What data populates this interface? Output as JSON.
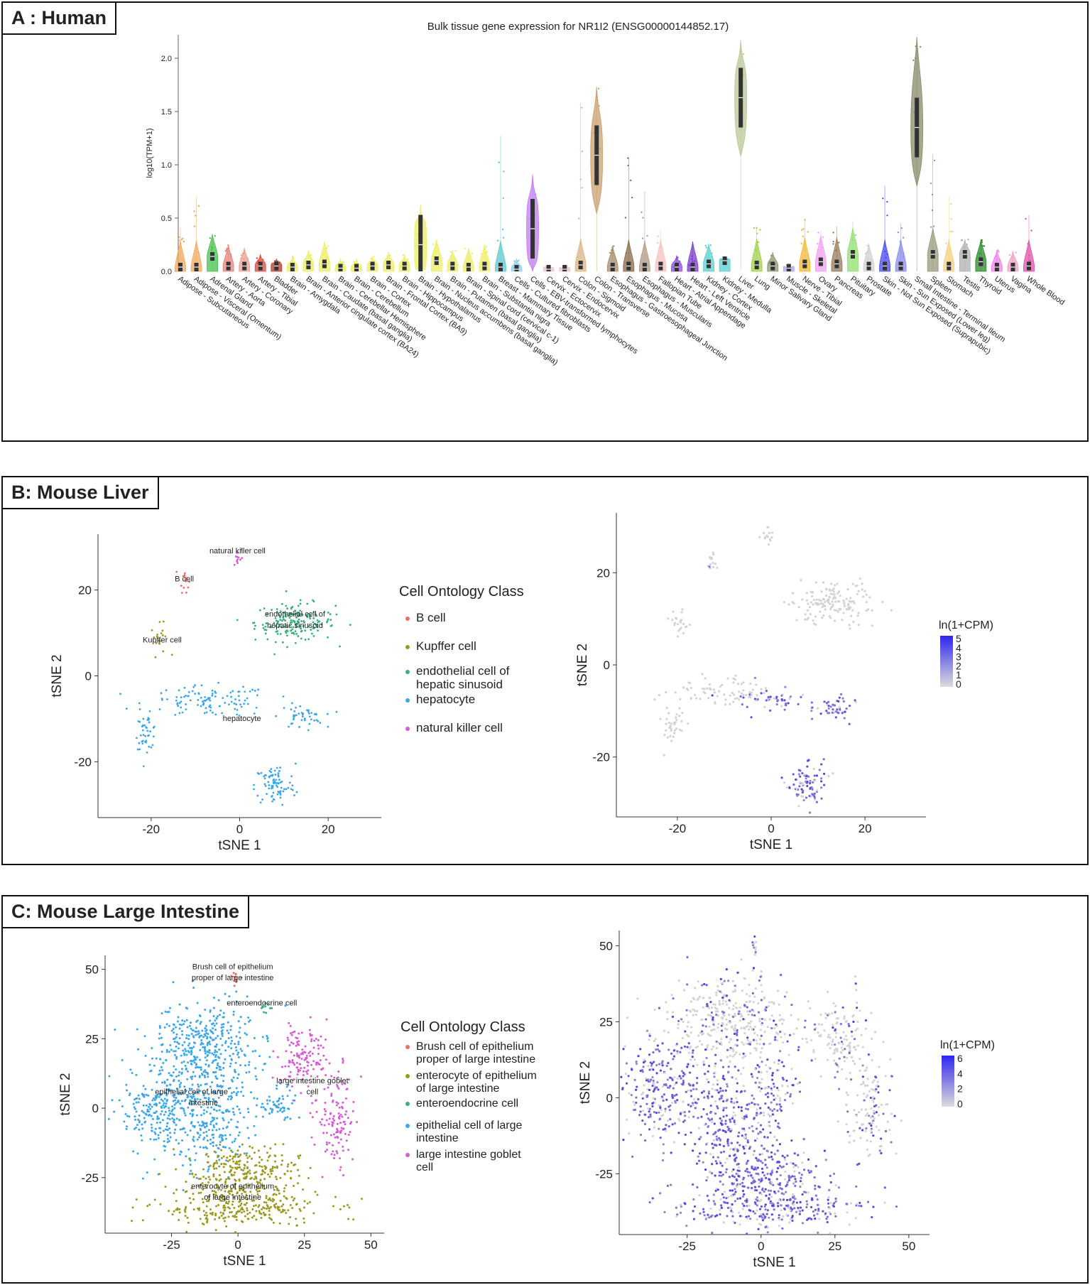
{
  "panels": {
    "A": {
      "label": "A  : Human"
    },
    "B": {
      "label": "B: Mouse Liver"
    },
    "C": {
      "label": "C: Mouse Large Intestine"
    }
  },
  "colors": {
    "grey": "#d3d3d3",
    "purple": "#4b33e0",
    "B cell": "#e8715f",
    "Kupffer cell": "#9c9a1e",
    "endothelial": "#33b27a",
    "hepatocyte": "#3aa7e8",
    "nk": "#d85ad8"
  },
  "chart_data": [
    {
      "id": "A",
      "type": "violin",
      "title": "Bulk tissue gene expression for NR1I2 (ENSG00000144852.17)",
      "ylabel": "log10(TPM+1)",
      "ylim": [
        0,
        2.2
      ],
      "yticks": [
        "0.0",
        "0.5",
        "1.0",
        "1.5",
        "2.0"
      ],
      "tissues": [
        {
          "name": "Adipose - Subcutaneous",
          "median": 0.04,
          "max": 0.42,
          "color": "#f2a85f"
        },
        {
          "name": "Adipose - Visceral (Omentum)",
          "median": 0.04,
          "max": 0.7,
          "color": "#f2a85f"
        },
        {
          "name": "Adrenal Gland",
          "median": 0.14,
          "max": 0.35,
          "color": "#46c24b"
        },
        {
          "name": "Artery - Aorta",
          "median": 0.05,
          "max": 0.25,
          "color": "#e8807a"
        },
        {
          "name": "Artery - Coronary",
          "median": 0.05,
          "max": 0.22,
          "color": "#e8a090"
        },
        {
          "name": "Artery - Tibial",
          "median": 0.05,
          "max": 0.16,
          "color": "#d94a3a"
        },
        {
          "name": "Bladder",
          "median": 0.05,
          "max": 0.12,
          "color": "#b83a2a"
        },
        {
          "name": "Brain - Amygdala",
          "median": 0.04,
          "max": 0.14,
          "color": "#eeee66"
        },
        {
          "name": "Brain - Anterior cingulate cortex (BA24)",
          "median": 0.06,
          "max": 0.2,
          "color": "#eeee66"
        },
        {
          "name": "Brain - Caudate (basal ganglia)",
          "median": 0.07,
          "max": 0.28,
          "color": "#eeee66"
        },
        {
          "name": "Brain - Cerebellar Hemisphere",
          "median": 0.03,
          "max": 0.12,
          "color": "#eeee66"
        },
        {
          "name": "Brain - Cerebellum",
          "median": 0.03,
          "max": 0.12,
          "color": "#eeee66"
        },
        {
          "name": "Brain - Cortex",
          "median": 0.05,
          "max": 0.14,
          "color": "#eeee66"
        },
        {
          "name": "Brain - Frontal Cortex (BA9)",
          "median": 0.06,
          "max": 0.18,
          "color": "#eeee66"
        },
        {
          "name": "Brain - Hippocampus",
          "median": 0.05,
          "max": 0.16,
          "color": "#eeee66"
        },
        {
          "name": "Brain - Hypothalamus",
          "median": 0.25,
          "max": 0.63,
          "color": "#eeee66"
        },
        {
          "name": "Brain - Nucleus accumbens (basal ganglia)",
          "median": 0.1,
          "max": 0.3,
          "color": "#eeee66"
        },
        {
          "name": "Brain - Putamen (basal ganglia)",
          "median": 0.05,
          "max": 0.2,
          "color": "#eeee66"
        },
        {
          "name": "Brain - Spinal cord (cervical c-1)",
          "median": 0.04,
          "max": 0.22,
          "color": "#eeee66"
        },
        {
          "name": "Brain - Substantia nigra",
          "median": 0.05,
          "max": 0.25,
          "color": "#eeee66"
        },
        {
          "name": "Breast - Mammary Tissue",
          "median": 0.04,
          "max": 1.27,
          "color": "#5cc8d0"
        },
        {
          "name": "Cells - Cultured fibroblasts",
          "median": 0.02,
          "max": 0.12,
          "color": "#8ccde8"
        },
        {
          "name": "Cells - EBV-transformed lymphocytes",
          "median": 0.4,
          "max": 0.91,
          "color": "#c27cf0"
        },
        {
          "name": "Cervix - Ectocervix",
          "median": 0.02,
          "max": 0.06,
          "color": "#f2c2d0"
        },
        {
          "name": "Cervix - Endocervix",
          "median": 0.02,
          "max": 0.05,
          "color": "#f2c2d0"
        },
        {
          "name": "Colon - Sigmoid",
          "median": 0.06,
          "max": 1.58,
          "color": "#d9b484"
        },
        {
          "name": "Colon - Transverse",
          "median": 1.09,
          "max": 1.73,
          "color": "#c8a070"
        },
        {
          "name": "Esophagus - Gastroesophageal Junction",
          "median": 0.04,
          "max": 0.24,
          "color": "#a88a6a"
        },
        {
          "name": "Esophagus - Mucosa",
          "median": 0.05,
          "max": 1.07,
          "color": "#8a6a4a"
        },
        {
          "name": "Esophagus - Muscularis",
          "median": 0.04,
          "max": 0.75,
          "color": "#b09a80"
        },
        {
          "name": "Fallopian Tube",
          "median": 0.05,
          "max": 0.38,
          "color": "#f5c2c2"
        },
        {
          "name": "Heart - Atrial Appendage",
          "median": 0.04,
          "max": 0.15,
          "color": "#8a4ae0"
        },
        {
          "name": "Heart - Left Ventricle",
          "median": 0.04,
          "max": 0.28,
          "color": "#7a3ad0"
        },
        {
          "name": "Kidney - Cortex",
          "median": 0.07,
          "max": 0.26,
          "color": "#5ad0d0"
        },
        {
          "name": "Kidney - Medulla",
          "median": 0.1,
          "max": 0.13,
          "color": "#5ad0d0"
        },
        {
          "name": "Liver",
          "median": 1.63,
          "max": 2.17,
          "color": "#b8c896"
        },
        {
          "name": "Lung",
          "median": 0.06,
          "max": 0.42,
          "color": "#a0d048"
        },
        {
          "name": "Minor Salivary Gland",
          "median": 0.05,
          "max": 0.18,
          "color": "#8a9a70"
        },
        {
          "name": "Muscle - Skeletal",
          "median": 0.03,
          "max": 0.06,
          "color": "#b0a0f0"
        },
        {
          "name": "Nerve - Tibial",
          "median": 0.07,
          "max": 0.5,
          "color": "#f2b830"
        },
        {
          "name": "Ovary",
          "median": 0.09,
          "max": 0.38,
          "color": "#f0a0f0"
        },
        {
          "name": "Pancreas",
          "median": 0.07,
          "max": 0.42,
          "color": "#9a7a5a"
        },
        {
          "name": "Pituitary",
          "median": 0.16,
          "max": 0.47,
          "color": "#90e070"
        },
        {
          "name": "Prostate",
          "median": 0.05,
          "max": 0.26,
          "color": "#d0d0d0"
        },
        {
          "name": "Skin - Not Sun Exposed (Suprapubic)",
          "median": 0.05,
          "max": 0.8,
          "color": "#4a4af0"
        },
        {
          "name": "Skin - Sun Exposed (Lower leg)",
          "median": 0.05,
          "max": 0.45,
          "color": "#8a8af0"
        },
        {
          "name": "Small Intestine - Terminal Ileum",
          "median": 1.35,
          "max": 2.2,
          "color": "#8a8a6a"
        },
        {
          "name": "Spleen",
          "median": 0.16,
          "max": 1.1,
          "color": "#9a9a7a"
        },
        {
          "name": "Stomach",
          "median": 0.05,
          "max": 0.7,
          "color": "#f2d080"
        },
        {
          "name": "Testis",
          "median": 0.16,
          "max": 0.3,
          "color": "#b0b0b0"
        },
        {
          "name": "Thyroid",
          "median": 0.09,
          "max": 0.3,
          "color": "#2a8a2a"
        },
        {
          "name": "Uterus",
          "median": 0.04,
          "max": 0.2,
          "color": "#f080f0"
        },
        {
          "name": "Vagina",
          "median": 0.04,
          "max": 0.19,
          "color": "#f0a0c8"
        },
        {
          "name": "Whole Blood",
          "median": 0.05,
          "max": 0.53,
          "color": "#e050a8"
        }
      ]
    },
    {
      "id": "B-left",
      "type": "scatter",
      "xlabel": "tSNE 1",
      "ylabel": "tSNE 2",
      "xlim": [
        -32,
        32
      ],
      "ylim": [
        -33,
        33
      ],
      "xticks": [
        -20,
        0,
        20
      ],
      "yticks": [
        -20,
        0,
        20
      ],
      "legend_title": "Cell Ontology Class",
      "legend": [
        {
          "label": "B cell",
          "color": "#e8715f"
        },
        {
          "label": "Kupffer cell",
          "color": "#9c9a1e"
        },
        {
          "label": "endothelial cell of hepatic sinusoid",
          "color": "#33b27a"
        },
        {
          "label": "hepatocyte",
          "color": "#3aa7e8"
        },
        {
          "label": "natural killer cell",
          "color": "#d85ad8"
        }
      ],
      "annotations": [
        {
          "text": "natural killer cell",
          "x": -0.5,
          "y": 28.5
        },
        {
          "text": "B cell",
          "x": -12.5,
          "y": 22
        },
        {
          "text": "endothelial cell of",
          "x": 12.5,
          "y": 13.8
        },
        {
          "text": "hepatic sinusoid",
          "x": 12.5,
          "y": 11.2
        },
        {
          "text": "Kupffer cell",
          "x": -17.5,
          "y": 7.8
        },
        {
          "text": "hepatocyte",
          "x": 0.5,
          "y": -10.5
        }
      ],
      "clusters": [
        {
          "class": "natural killer cell",
          "color": "#d85ad8",
          "cx": -0.5,
          "cy": 27.5,
          "sx": 0.6,
          "sy": 1.3,
          "n": 12
        },
        {
          "class": "B cell",
          "color": "#e8715f",
          "cx": -12.5,
          "cy": 22.5,
          "sx": 0.5,
          "sy": 1.5,
          "n": 14
        },
        {
          "class": "Kupffer cell",
          "color": "#9c9a1e",
          "cx": -18,
          "cy": 8.5,
          "sx": 1.0,
          "sy": 1.8,
          "n": 18
        },
        {
          "class": "endothelial cell of hepatic sinusoid",
          "color": "#33b27a",
          "cx": 12.5,
          "cy": 12.5,
          "sx": 4.5,
          "sy": 2.2,
          "n": 170
        },
        {
          "class": "hepatocyte",
          "color": "#3aa7e8",
          "cx": -7,
          "cy": -6,
          "sx": 7,
          "sy": 1.8,
          "n": 110
        },
        {
          "class": "hepatocyte",
          "color": "#3aa7e8",
          "cx": -21,
          "cy": -13,
          "sx": 1.2,
          "sy": 2.0,
          "n": 40
        },
        {
          "class": "hepatocyte",
          "color": "#3aa7e8",
          "cx": 14,
          "cy": -9.5,
          "sx": 2.5,
          "sy": 1.4,
          "n": 45
        },
        {
          "class": "hepatocyte",
          "color": "#3aa7e8",
          "cx": 8,
          "cy": -25.5,
          "sx": 2.3,
          "sy": 2.5,
          "n": 85
        }
      ]
    },
    {
      "id": "B-right",
      "type": "scatter",
      "xlabel": "tSNE 1",
      "ylabel": "tSNE 2",
      "xlim": [
        -33,
        33
      ],
      "ylim": [
        -33,
        33
      ],
      "xticks": [
        -20,
        0,
        20
      ],
      "yticks": [
        -20,
        0,
        20
      ],
      "colorbar_title": "ln(1+CPM)",
      "colorbar_ticks": [
        "5",
        "4",
        "3",
        "2",
        "1",
        "0"
      ],
      "clusters": [
        {
          "color": "#d3d3d3",
          "cx": -0.5,
          "cy": 28.5,
          "sx": 0.7,
          "sy": 1.2,
          "n": 14,
          "purple_frac": 0.0
        },
        {
          "color": "#d3d3d3",
          "cx": -12.5,
          "cy": 22.5,
          "sx": 0.5,
          "sy": 1.3,
          "n": 14,
          "purple_frac": 0.1
        },
        {
          "color": "#d3d3d3",
          "cx": -19.5,
          "cy": 9,
          "sx": 1.0,
          "sy": 2.0,
          "n": 22,
          "purple_frac": 0.0
        },
        {
          "color": "#d3d3d3",
          "cx": 12.5,
          "cy": 13.5,
          "sx": 4.5,
          "sy": 2.3,
          "n": 150,
          "purple_frac": 0.0
        },
        {
          "color": "#d3d3d3",
          "cx": -10,
          "cy": -5.5,
          "sx": 5.5,
          "sy": 1.6,
          "n": 80,
          "purple_frac": 0.05
        },
        {
          "color": "#d3d3d3",
          "cx": 1,
          "cy": -8,
          "sx": 4,
          "sy": 1.3,
          "n": 40,
          "purple_frac": 0.8
        },
        {
          "color": "#d3d3d3",
          "cx": -21,
          "cy": -13,
          "sx": 1.2,
          "sy": 2.0,
          "n": 35,
          "purple_frac": 0.0
        },
        {
          "color": "#d3d3d3",
          "cx": 14,
          "cy": -9.5,
          "sx": 2.5,
          "sy": 1.4,
          "n": 45,
          "purple_frac": 0.85
        },
        {
          "color": "#d3d3d3",
          "cx": 8,
          "cy": -25.5,
          "sx": 2.3,
          "sy": 2.5,
          "n": 85,
          "purple_frac": 0.8
        }
      ]
    },
    {
      "id": "C-left",
      "type": "scatter",
      "xlabel": "tSNE 1",
      "ylabel": "tSNE 2",
      "xlim": [
        -50,
        55
      ],
      "ylim": [
        -45,
        55
      ],
      "xticks": [
        -25,
        0,
        25,
        50
      ],
      "yticks": [
        -25,
        0,
        25,
        50
      ],
      "legend_title": "Cell Ontology Class",
      "legend": [
        {
          "label1": "Brush cell of epithelium",
          "label2": "proper of large intestine",
          "color": "#e8715f"
        },
        {
          "label1": "enterocyte of epithelium",
          "label2": "of large intestine",
          "color": "#9c9a1e"
        },
        {
          "label1": "enteroendocrine cell",
          "label2": "",
          "color": "#33b27a"
        },
        {
          "label1": "epithelial cell of large",
          "label2": "intestine",
          "color": "#3aa7e8"
        },
        {
          "label1": "large intestine goblet",
          "label2": "cell",
          "color": "#d85ad8"
        }
      ],
      "annotations": [
        {
          "text": "Brush cell of epithelium",
          "x": -2,
          "y": 50
        },
        {
          "text": "proper of large intestine",
          "x": -2,
          "y": 46
        },
        {
          "text": "enteroendocrine cell",
          "x": 9,
          "y": 37
        },
        {
          "text": "large intestine goblet",
          "x": 28,
          "y": 9
        },
        {
          "text": "cell",
          "x": 28,
          "y": 5
        },
        {
          "text": "epithelial cell of large",
          "x": -17.5,
          "y": 5
        },
        {
          "text": "intestine",
          "x": -13,
          "y": 1
        },
        {
          "text": "enterocyte of epithelium",
          "x": -2,
          "y": -29
        },
        {
          "text": "of large intestine",
          "x": -2,
          "y": -33
        }
      ],
      "clusters": [
        {
          "class": "Brush cell",
          "color": "#e8715f",
          "cx": -1.5,
          "cy": 47.5,
          "sx": 0.8,
          "sy": 1.5,
          "n": 12
        },
        {
          "class": "enteroendocrine cell",
          "color": "#33b27a",
          "cx": 11,
          "cy": 36,
          "sx": 1.5,
          "sy": 1.0,
          "n": 10
        },
        {
          "class": "epithelial cell of large intestine",
          "color": "#3aa7e8",
          "cx": -12,
          "cy": 22,
          "sx": 10,
          "sy": 8,
          "n": 380
        },
        {
          "class": "epithelial cell of large intestine",
          "color": "#3aa7e8",
          "cx": -30,
          "cy": 0,
          "sx": 7,
          "sy": 8,
          "n": 260
        },
        {
          "class": "epithelial cell of large intestine",
          "color": "#3aa7e8",
          "cx": -10,
          "cy": -3,
          "sx": 7,
          "sy": 10,
          "n": 260
        },
        {
          "class": "epithelial cell of large intestine",
          "color": "#3aa7e8",
          "cx": 14,
          "cy": 1,
          "sx": 4,
          "sy": 3.5,
          "n": 60
        },
        {
          "class": "large intestine goblet cell",
          "color": "#d85ad8",
          "cx": 25,
          "cy": 18,
          "sx": 5,
          "sy": 6,
          "n": 130
        },
        {
          "class": "large intestine goblet cell",
          "color": "#d85ad8",
          "cx": 37,
          "cy": -4,
          "sx": 4,
          "sy": 8,
          "n": 120
        },
        {
          "class": "enterocyte of epithelium",
          "color": "#9c9a1e",
          "cx": 3,
          "cy": -23,
          "sx": 10,
          "sy": 5,
          "n": 270
        },
        {
          "class": "enterocyte of epithelium",
          "color": "#9c9a1e",
          "cx": 0,
          "cy": -36,
          "sx": 16,
          "sy": 3.5,
          "n": 260
        }
      ]
    },
    {
      "id": "C-right",
      "type": "scatter",
      "xlabel": "tSNE 1",
      "ylabel": "tSNE 2",
      "xlim": [
        -48,
        57
      ],
      "ylim": [
        -45,
        55
      ],
      "xticks": [
        -25,
        0,
        25,
        50
      ],
      "yticks": [
        -25,
        0,
        25,
        50
      ],
      "colorbar_title": "ln(1+CPM)",
      "colorbar_ticks": [
        "6",
        "4",
        "2",
        "0"
      ],
      "clusters": [
        {
          "color": "#d3d3d3",
          "cx": -2,
          "cy": 50,
          "sx": 0.6,
          "sy": 1.8,
          "n": 10,
          "purple_frac": 0.3
        },
        {
          "color": "#d3d3d3",
          "cx": -10,
          "cy": 25,
          "sx": 12,
          "sy": 7,
          "n": 380,
          "purple_frac": 0.25
        },
        {
          "color": "#d3d3d3",
          "cx": 27,
          "cy": 20,
          "sx": 5,
          "sy": 7,
          "n": 130,
          "purple_frac": 0.2
        },
        {
          "color": "#d3d3d3",
          "cx": 37,
          "cy": -3,
          "sx": 5,
          "sy": 9,
          "n": 120,
          "purple_frac": 0.35
        },
        {
          "color": "#d3d3d3",
          "cx": -34,
          "cy": 2,
          "sx": 6,
          "sy": 8,
          "n": 250,
          "purple_frac": 0.85
        },
        {
          "color": "#d3d3d3",
          "cx": -12,
          "cy": -8,
          "sx": 6,
          "sy": 12,
          "n": 270,
          "purple_frac": 0.8
        },
        {
          "color": "#d3d3d3",
          "cx": 4,
          "cy": 0,
          "sx": 4,
          "sy": 8,
          "n": 120,
          "purple_frac": 0.7
        },
        {
          "color": "#d3d3d3",
          "cx": 2,
          "cy": -27,
          "sx": 10,
          "sy": 5,
          "n": 270,
          "purple_frac": 0.85
        },
        {
          "color": "#d3d3d3",
          "cx": 2,
          "cy": -37,
          "sx": 16,
          "sy": 3.5,
          "n": 230,
          "purple_frac": 0.75
        }
      ]
    }
  ]
}
